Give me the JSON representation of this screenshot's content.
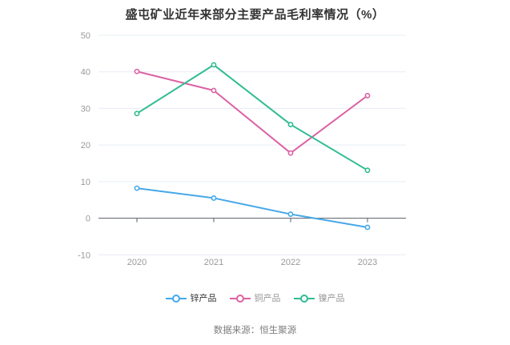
{
  "chart_data": {
    "type": "line",
    "title": "盛屯矿业近年来部分主要产品毛利率情况（%）",
    "categories": [
      "2020",
      "2021",
      "2022",
      "2023"
    ],
    "series": [
      {
        "key": "zinc",
        "name": "锌产品",
        "values": [
          8.2,
          5.5,
          1.1,
          -2.5
        ],
        "color": "#45A8E8",
        "label_color": "#333333"
      },
      {
        "key": "copper",
        "name": "铜产品",
        "values": [
          40.1,
          34.9,
          17.8,
          33.5
        ],
        "color": "#DB62A4",
        "label_color": "#999999"
      },
      {
        "key": "nickel",
        "name": "镍产品",
        "values": [
          28.6,
          41.9,
          25.6,
          13.1
        ],
        "color": "#2FBC92",
        "label_color": "#999999"
      }
    ],
    "yticks": [
      -10,
      0,
      10,
      20,
      30,
      40,
      50
    ],
    "ylim": [
      -10,
      50
    ],
    "xlabel": "",
    "ylabel": "",
    "grid": true,
    "legend_position": "bottom",
    "colors": {
      "title": "#333333",
      "axis_label": "#999999",
      "gridline": "#E7ECF3",
      "zero_axis_line": "#5A5E66",
      "marker_fill": "#ffffff"
    }
  },
  "footer": {
    "source_label": "数据来源：恒生聚源"
  }
}
